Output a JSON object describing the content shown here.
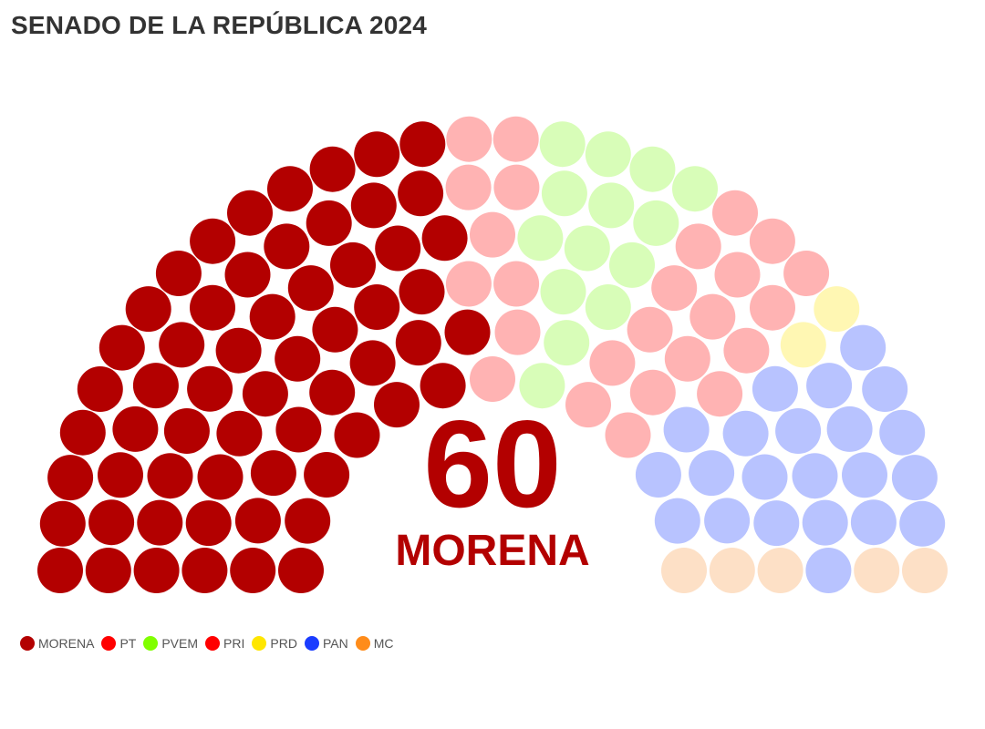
{
  "title": "SENADO DE LA REPÚBLICA 2024",
  "center_label": {
    "value": "60",
    "party": "MORENA",
    "color": "#b30000"
  },
  "legend": [
    {
      "name": "MORENA",
      "color": "#b30000"
    },
    {
      "name": "PT",
      "color": "#ff0000"
    },
    {
      "name": "PVEM",
      "color": "#80ff00"
    },
    {
      "name": "PRI",
      "color": "#ff0000"
    },
    {
      "name": "PRD",
      "color": "#ffe600"
    },
    {
      "name": "PAN",
      "color": "#1a3cff"
    },
    {
      "name": "MC",
      "color": "#ff8c1a"
    }
  ],
  "chart_data": {
    "type": "parliament",
    "title": "SENADO DE LA REPÚBLICA 2024",
    "highlight": "MORENA",
    "total_seats": 128,
    "series": [
      {
        "name": "MORENA",
        "seats": 60,
        "color": "#b30000",
        "faded_color": "#b30000"
      },
      {
        "name": "PT",
        "seats": 9,
        "color": "#ff0000",
        "faded_color": "#ffb3b3"
      },
      {
        "name": "PVEM",
        "seats": 14,
        "color": "#80ff00",
        "faded_color": "#d8fdb8"
      },
      {
        "name": "PRI",
        "seats": 16,
        "color": "#ff0000",
        "faded_color": "#ffb3b3"
      },
      {
        "name": "PRD",
        "seats": 2,
        "color": "#ffe600",
        "faded_color": "#fff7b3"
      },
      {
        "name": "PAN",
        "seats": 22,
        "color": "#1a3cff",
        "faded_color": "#b8c3ff"
      },
      {
        "name": "MC",
        "seats": 5,
        "color": "#ff8c1a",
        "faded_color": "#fde0c6"
      }
    ]
  }
}
